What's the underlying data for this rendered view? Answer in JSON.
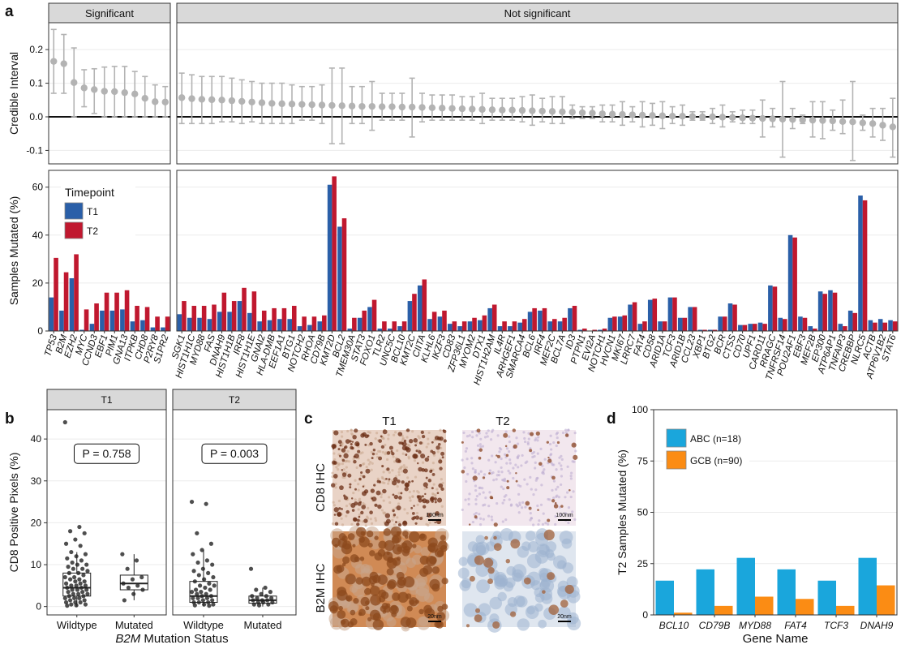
{
  "panels": {
    "a": "a",
    "b": "b",
    "c": "c",
    "d": "d"
  },
  "colors": {
    "T1": "#2a5fa8",
    "T2": "#c0182f",
    "ci_point": "#b3b3b3",
    "ABC": "#1aa6dc",
    "GCB": "#fb8c14",
    "strip_bg": "#d9d9d9",
    "grid": "#ebebeb"
  },
  "chart_data": [
    {
      "id": "a-top",
      "type": "scatter",
      "ylabel": "Credible Interval",
      "ylim": [
        -0.14,
        0.28
      ],
      "yticks": [
        -0.1,
        0.0,
        0.1,
        0.2
      ],
      "ytick_labels": [
        "-0.1",
        "0.0",
        "0.1",
        "0.2"
      ],
      "facets": [
        "Significant",
        "Not significant"
      ],
      "significant": [
        {
          "gene": "TP53",
          "y": 0.165,
          "lo": 0.07,
          "hi": 0.26
        },
        {
          "gene": "B2M",
          "y": 0.158,
          "lo": 0.07,
          "hi": 0.245
        },
        {
          "gene": "EZH2",
          "y": 0.102,
          "lo": 0.0,
          "hi": 0.205
        },
        {
          "gene": "MYC",
          "y": 0.086,
          "lo": 0.03,
          "hi": 0.14
        },
        {
          "gene": "CCND3",
          "y": 0.081,
          "lo": 0.01,
          "hi": 0.143
        },
        {
          "gene": "EBF1",
          "y": 0.076,
          "lo": 0.0,
          "hi": 0.148
        },
        {
          "gene": "PIM1",
          "y": 0.075,
          "lo": 0.0,
          "hi": 0.15
        },
        {
          "gene": "GNA13",
          "y": 0.072,
          "lo": 0.0,
          "hi": 0.15
        },
        {
          "gene": "ITPKB",
          "y": 0.068,
          "lo": 0.0,
          "hi": 0.135
        },
        {
          "gene": "CHD8",
          "y": 0.055,
          "lo": 0.0,
          "hi": 0.12
        },
        {
          "gene": "P2RY8",
          "y": 0.045,
          "lo": 0.0,
          "hi": 0.095
        },
        {
          "gene": "S1PR2",
          "y": 0.044,
          "lo": 0.0,
          "hi": 0.09
        }
      ],
      "not_significant": [
        {
          "gene": "SGK1",
          "y": 0.057,
          "lo": -0.02,
          "hi": 0.13
        },
        {
          "gene": "HIST1H1C",
          "y": 0.054,
          "lo": -0.02,
          "hi": 0.125
        },
        {
          "gene": "MYD88",
          "y": 0.052,
          "lo": -0.02,
          "hi": 0.12
        },
        {
          "gene": "FAS",
          "y": 0.051,
          "lo": -0.02,
          "hi": 0.12
        },
        {
          "gene": "DNAH9",
          "y": 0.05,
          "lo": -0.015,
          "hi": 0.12
        },
        {
          "gene": "HIST1H1B",
          "y": 0.048,
          "lo": -0.015,
          "hi": 0.115
        },
        {
          "gene": "IRF8",
          "y": 0.046,
          "lo": -0.02,
          "hi": 0.11
        },
        {
          "gene": "HIST1H1E",
          "y": 0.044,
          "lo": -0.015,
          "hi": 0.105
        },
        {
          "gene": "GNAI2",
          "y": 0.042,
          "lo": -0.02,
          "hi": 0.1
        },
        {
          "gene": "HLA-DMB",
          "y": 0.04,
          "lo": -0.02,
          "hi": 0.1
        },
        {
          "gene": "EEF1A1",
          "y": 0.039,
          "lo": -0.02,
          "hi": 0.1
        },
        {
          "gene": "BTG1",
          "y": 0.038,
          "lo": -0.02,
          "hi": 0.095
        },
        {
          "gene": "NOTCH2",
          "y": 0.037,
          "lo": -0.01,
          "hi": 0.09
        },
        {
          "gene": "RHOA",
          "y": 0.036,
          "lo": -0.01,
          "hi": 0.09
        },
        {
          "gene": "CD79B",
          "y": 0.035,
          "lo": -0.02,
          "hi": 0.095
        },
        {
          "gene": "KMT2D",
          "y": 0.034,
          "lo": -0.08,
          "hi": 0.145
        },
        {
          "gene": "BCL2",
          "y": 0.033,
          "lo": -0.08,
          "hi": 0.145
        },
        {
          "gene": "TMEM30A",
          "y": 0.032,
          "lo": -0.02,
          "hi": 0.09
        },
        {
          "gene": "STAT3",
          "y": 0.031,
          "lo": -0.02,
          "hi": 0.09
        },
        {
          "gene": "FOXO1",
          "y": 0.031,
          "lo": -0.04,
          "hi": 0.105
        },
        {
          "gene": "TLR2",
          "y": 0.03,
          "lo": -0.01,
          "hi": 0.07
        },
        {
          "gene": "UNC5C",
          "y": 0.03,
          "lo": -0.01,
          "hi": 0.07
        },
        {
          "gene": "BCL10",
          "y": 0.029,
          "lo": -0.01,
          "hi": 0.07
        },
        {
          "gene": "KMT2C",
          "y": 0.029,
          "lo": -0.06,
          "hi": 0.115
        },
        {
          "gene": "CIITA",
          "y": 0.028,
          "lo": -0.015,
          "hi": 0.07
        },
        {
          "gene": "KLHL6",
          "y": 0.027,
          "lo": -0.01,
          "hi": 0.065
        },
        {
          "gene": "IKZF3",
          "y": 0.026,
          "lo": -0.01,
          "hi": 0.065
        },
        {
          "gene": "CD83",
          "y": 0.025,
          "lo": -0.01,
          "hi": 0.065
        },
        {
          "gene": "ZFP36L1",
          "y": 0.024,
          "lo": -0.01,
          "hi": 0.06
        },
        {
          "gene": "MYOM2",
          "y": 0.023,
          "lo": -0.01,
          "hi": 0.06
        },
        {
          "gene": "DTX1",
          "y": 0.022,
          "lo": -0.02,
          "hi": 0.07
        },
        {
          "gene": "HIST1H2AM",
          "y": 0.021,
          "lo": -0.01,
          "hi": 0.055
        },
        {
          "gene": "IL4R",
          "y": 0.02,
          "lo": -0.01,
          "hi": 0.055
        },
        {
          "gene": "ARHGEF1",
          "y": 0.02,
          "lo": -0.01,
          "hi": 0.055
        },
        {
          "gene": "SMARCA4",
          "y": 0.019,
          "lo": -0.015,
          "hi": 0.06
        },
        {
          "gene": "BCL6",
          "y": 0.018,
          "lo": -0.025,
          "hi": 0.065
        },
        {
          "gene": "IRF4",
          "y": 0.017,
          "lo": -0.015,
          "hi": 0.055
        },
        {
          "gene": "MEF2C",
          "y": 0.016,
          "lo": -0.02,
          "hi": 0.06
        },
        {
          "gene": "BCL7A",
          "y": 0.015,
          "lo": -0.02,
          "hi": 0.06
        },
        {
          "gene": "ID3",
          "y": 0.014,
          "lo": -0.005,
          "hi": 0.035
        },
        {
          "gene": "PTPN1",
          "y": 0.012,
          "lo": -0.005,
          "hi": 0.03
        },
        {
          "gene": "EVI2A",
          "y": 0.011,
          "lo": -0.005,
          "hi": 0.03
        },
        {
          "gene": "NOTCH1",
          "y": 0.009,
          "lo": -0.015,
          "hi": 0.035
        },
        {
          "gene": "HVCN1",
          "y": 0.008,
          "lo": -0.015,
          "hi": 0.035
        },
        {
          "gene": "MKI67",
          "y": 0.007,
          "lo": -0.025,
          "hi": 0.045
        },
        {
          "gene": "LRRC7",
          "y": 0.006,
          "lo": -0.015,
          "hi": 0.03
        },
        {
          "gene": "FAT4",
          "y": 0.005,
          "lo": -0.03,
          "hi": 0.045
        },
        {
          "gene": "CD58",
          "y": 0.004,
          "lo": -0.025,
          "hi": 0.04
        },
        {
          "gene": "ARID1A",
          "y": 0.003,
          "lo": -0.035,
          "hi": 0.045
        },
        {
          "gene": "TCF3",
          "y": 0.002,
          "lo": -0.02,
          "hi": 0.03
        },
        {
          "gene": "ARID1B",
          "y": 0.002,
          "lo": -0.025,
          "hi": 0.035
        },
        {
          "gene": "CCL23",
          "y": 0.001,
          "lo": -0.01,
          "hi": 0.015
        },
        {
          "gene": "XBP1",
          "y": 0.0,
          "lo": -0.01,
          "hi": 0.015
        },
        {
          "gene": "BTG2",
          "y": 0.0,
          "lo": -0.02,
          "hi": 0.025
        },
        {
          "gene": "BCR",
          "y": -0.001,
          "lo": -0.03,
          "hi": 0.035
        },
        {
          "gene": "CTSS",
          "y": -0.002,
          "lo": -0.015,
          "hi": 0.015
        },
        {
          "gene": "CD70",
          "y": -0.003,
          "lo": -0.02,
          "hi": 0.02
        },
        {
          "gene": "UPF1",
          "y": -0.004,
          "lo": -0.02,
          "hi": 0.02
        },
        {
          "gene": "CARD11",
          "y": -0.005,
          "lo": -0.06,
          "hi": 0.05
        },
        {
          "gene": "RRAGC",
          "y": -0.006,
          "lo": -0.03,
          "hi": 0.025
        },
        {
          "gene": "TNFRSF14",
          "y": -0.007,
          "lo": -0.12,
          "hi": 0.105
        },
        {
          "gene": "POU2AF1",
          "y": -0.008,
          "lo": -0.035,
          "hi": 0.025
        },
        {
          "gene": "EBF3",
          "y": -0.009,
          "lo": -0.02,
          "hi": 0.005
        },
        {
          "gene": "MEF2B",
          "y": -0.01,
          "lo": -0.06,
          "hi": 0.045
        },
        {
          "gene": "EP300",
          "y": -0.011,
          "lo": -0.065,
          "hi": 0.045
        },
        {
          "gene": "ATP6AP1",
          "y": -0.012,
          "lo": -0.04,
          "hi": 0.02
        },
        {
          "gene": "TNFAIP3",
          "y": -0.014,
          "lo": -0.05,
          "hi": 0.05
        },
        {
          "gene": "CREBBP",
          "y": -0.015,
          "lo": -0.13,
          "hi": 0.105
        },
        {
          "gene": "NLRC5",
          "y": -0.018,
          "lo": -0.04,
          "hi": 0.005
        },
        {
          "gene": "ACTB",
          "y": -0.02,
          "lo": -0.06,
          "hi": 0.025
        },
        {
          "gene": "ATP6V1B2",
          "y": -0.025,
          "lo": -0.07,
          "hi": 0.025
        },
        {
          "gene": "STAT6",
          "y": -0.03,
          "lo": -0.12,
          "hi": 0.055
        }
      ]
    },
    {
      "id": "a-bottom",
      "type": "bar",
      "ylabel": "Samples Mutated (%)",
      "ylim": [
        0,
        67
      ],
      "yticks": [
        0,
        20,
        40,
        60
      ],
      "ytick_labels": [
        "0",
        "20",
        "40",
        "60"
      ],
      "legend": {
        "title": "Timepoint",
        "entries": [
          "T1",
          "T2"
        ],
        "placement": "top-left"
      },
      "series": [
        {
          "name": "T1",
          "significant": [
            14,
            8.5,
            22,
            0.5,
            3,
            8.5,
            8.5,
            9,
            4,
            4.5,
            1.5,
            1.5
          ],
          "not_significant": [
            7,
            5.5,
            5.5,
            5,
            8,
            8,
            12.5,
            7.5,
            4,
            4.5,
            5,
            5,
            2,
            2.5,
            4,
            61,
            43.5,
            1,
            5.5,
            10,
            1,
            1,
            2,
            12.5,
            19,
            5,
            6,
            3,
            2,
            4,
            4.5,
            9.5,
            2,
            2,
            3.5,
            8,
            8.5,
            4,
            4,
            9.5,
            0.5,
            0,
            0.5,
            5.5,
            6,
            11,
            3,
            13,
            4,
            14,
            5.5,
            10,
            0.5,
            0.5,
            6,
            11.5,
            2.5,
            3,
            3.5,
            19,
            5.5,
            40,
            6,
            2,
            16.5,
            17,
            3,
            8.5,
            56.5,
            4.5,
            5,
            4.5,
            17.5
          ]
        },
        {
          "name": "T2",
          "significant": [
            30.5,
            24.5,
            32,
            9,
            11.5,
            16,
            16,
            17,
            10.5,
            10,
            6,
            6
          ],
          "not_significant": [
            12.5,
            10.5,
            10.5,
            11,
            16,
            12.5,
            18,
            16.5,
            8.5,
            9.5,
            9.5,
            10.5,
            6,
            6,
            6.5,
            64.5,
            47,
            5.5,
            8.5,
            13,
            4,
            4,
            4,
            15.5,
            21.5,
            8,
            8.5,
            4,
            4,
            5.5,
            6.5,
            11,
            4,
            4,
            5,
            9.5,
            9.5,
            5,
            5.5,
            10.5,
            1,
            0.5,
            1,
            6,
            6.5,
            12,
            4,
            13.5,
            4,
            14,
            5.5,
            10,
            0.5,
            0.5,
            6,
            11,
            2.5,
            3,
            3,
            18.5,
            5,
            39,
            5.5,
            1,
            15.5,
            16,
            2,
            7.5,
            54.5,
            3.5,
            3.5,
            4,
            14
          ]
        }
      ]
    },
    {
      "id": "b",
      "type": "scatter",
      "ylabel": "CD8 Positive Pixels (%)",
      "xlabel_gene": "B2M",
      "xlabel_rest": " Mutation Status",
      "ylim": [
        -2,
        47
      ],
      "yticks": [
        0,
        10,
        20,
        30,
        40
      ],
      "ytick_labels": [
        "0",
        "10",
        "20",
        "30",
        "40"
      ],
      "facets": [
        {
          "name": "T1",
          "pvalue": "P = 0.758",
          "groups": [
            {
              "name": "Wildtype",
              "q1": 2.5,
              "median": 4.5,
              "q3": 8,
              "whisker_low": 0,
              "whisker_high": 13,
              "points": [
                44,
                19,
                18,
                17.5,
                16,
                15,
                14.5,
                13,
                12.5,
                12,
                11.5,
                11,
                10.5,
                10,
                10,
                9.5,
                9,
                9,
                8.5,
                8,
                8,
                7.5,
                7,
                7,
                6.5,
                6.5,
                6,
                6,
                5.5,
                5.5,
                5,
                5,
                5,
                4.5,
                4.5,
                4,
                4,
                4,
                3.5,
                3.5,
                3,
                3,
                3,
                2.5,
                2.5,
                2,
                2,
                2,
                1.5,
                1.5,
                1,
                1,
                1,
                0.5,
                0.5,
                0.3,
                0.2
              ]
            },
            {
              "name": "Mutated",
              "q1": 4,
              "median": 5.5,
              "q3": 7.5,
              "whisker_low": 1.5,
              "whisker_high": 12.5,
              "points": [
                12.5,
                11,
                9,
                7,
                6.5,
                5.5,
                5,
                4.5,
                4,
                3,
                1.5
              ]
            }
          ]
        },
        {
          "name": "T2",
          "pvalue": "P = 0.003",
          "groups": [
            {
              "name": "Wildtype",
              "q1": 1,
              "median": 2.5,
              "q3": 6,
              "whisker_low": 0,
              "whisker_high": 13.5,
              "points": [
                25,
                24.5,
                17.5,
                15,
                13.5,
                12.5,
                11,
                10.5,
                10,
                9,
                8.5,
                8,
                7.5,
                7,
                6.5,
                6,
                5.5,
                5,
                5,
                4.5,
                4,
                4,
                3.5,
                3.5,
                3,
                3,
                2.5,
                2.5,
                2,
                2,
                2,
                1.5,
                1.5,
                1,
                1,
                1,
                0.5,
                0.5,
                0.3,
                0.2
              ]
            },
            {
              "name": "Mutated",
              "q1": 0.8,
              "median": 1.5,
              "q3": 2.5,
              "whisker_low": 0,
              "whisker_high": 4.5,
              "points": [
                9,
                4.5,
                4,
                3.5,
                3,
                2.5,
                2.5,
                2,
                2,
                1.5,
                1.5,
                1.5,
                1,
                1,
                1,
                0.5,
                0.5,
                0.3
              ]
            }
          ]
        }
      ]
    },
    {
      "id": "d",
      "type": "bar",
      "ylabel": "T2 Samples Mutated (%)",
      "xlabel": "Gene Name",
      "ylim": [
        0,
        100
      ],
      "yticks": [
        0,
        25,
        50,
        75,
        100
      ],
      "ytick_labels": [
        "0",
        "25",
        "50",
        "75",
        "100"
      ],
      "categories": [
        "BCL10",
        "CD79B",
        "MYD88",
        "FAT4",
        "TCF3",
        "DNAH9"
      ],
      "legend": {
        "placement": "top-left"
      },
      "series": [
        {
          "name": "ABC (n=18)",
          "values": [
            16.7,
            22.2,
            27.8,
            22.2,
            16.7,
            27.8
          ]
        },
        {
          "name": "GCB (n=90)",
          "values": [
            1.1,
            4.4,
            8.9,
            7.8,
            4.4,
            14.4
          ]
        }
      ]
    }
  ],
  "panel_c": {
    "col_labels": [
      "T1",
      "T2"
    ],
    "row_labels": [
      "CD8 IHC",
      "B2M IHC"
    ],
    "scale_bars": [
      "100nm",
      "100nm",
      "20nm",
      "20nm"
    ]
  }
}
